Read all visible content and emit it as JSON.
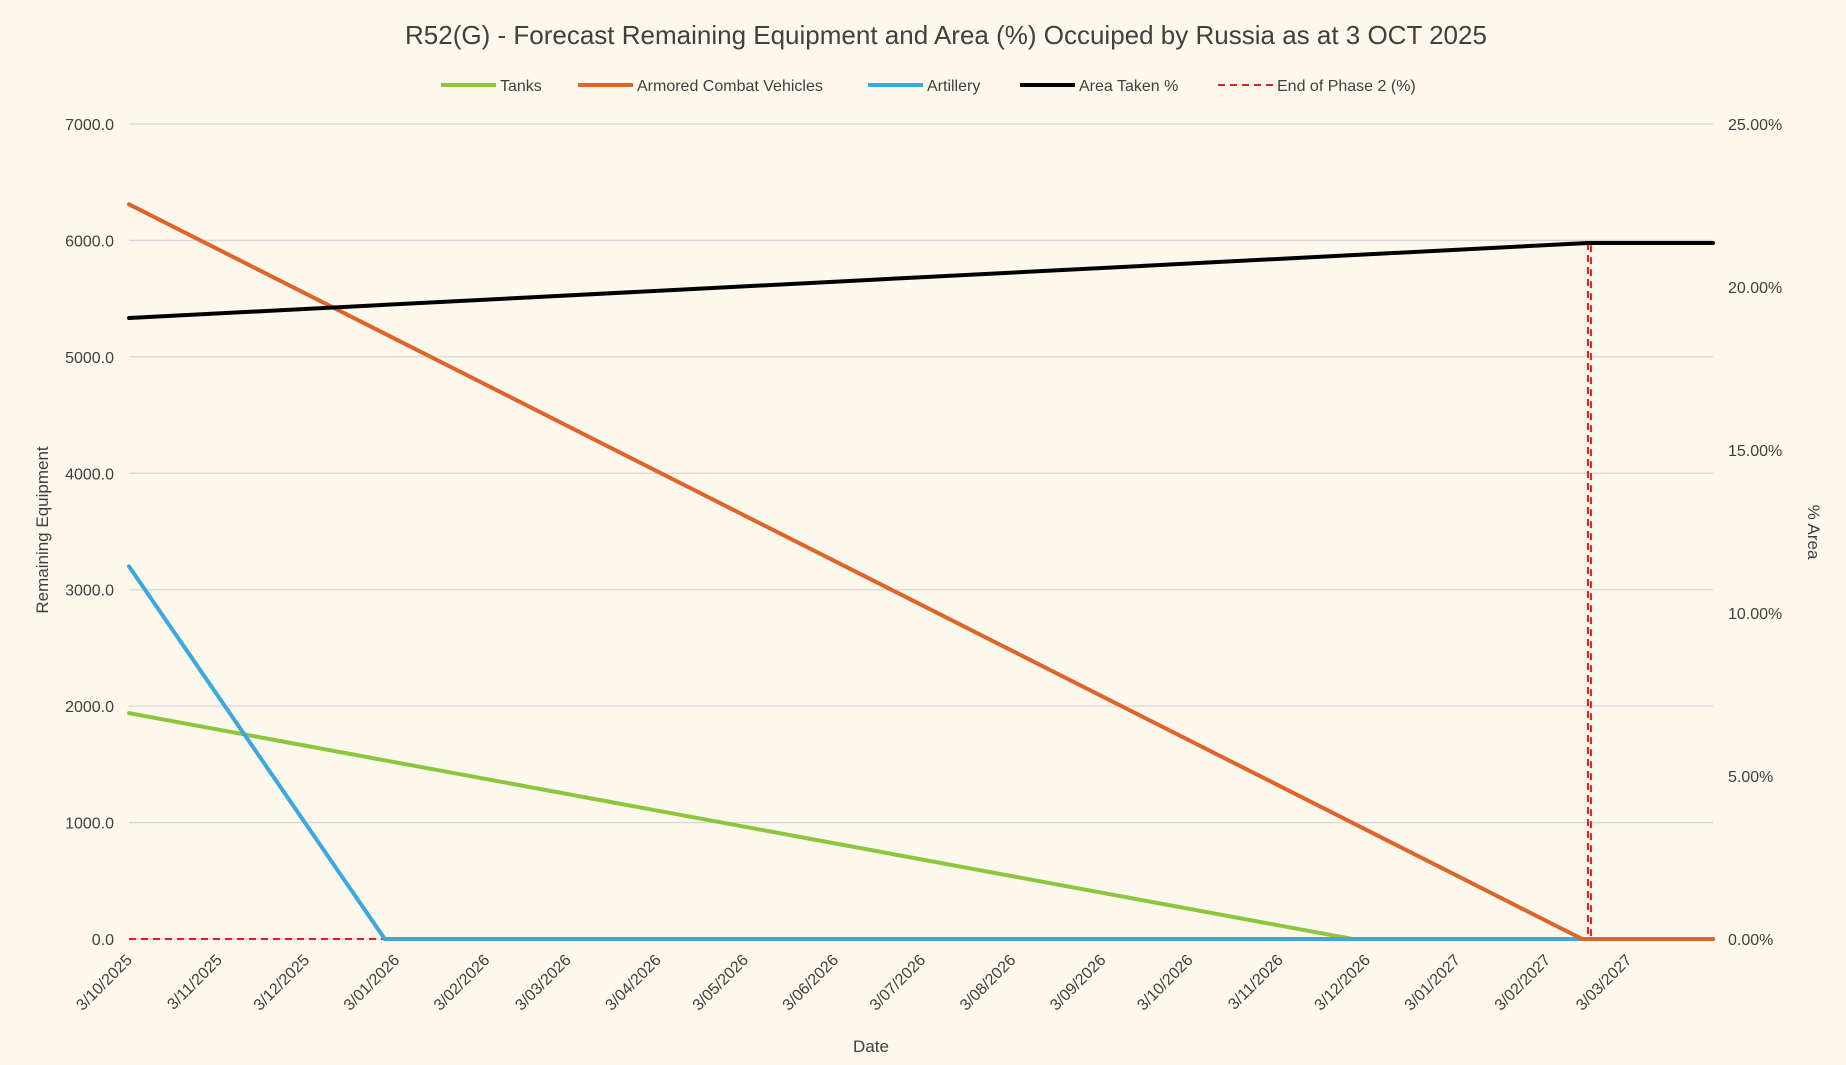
{
  "chart_data": {
    "type": "line",
    "title": "R52(G) - Forecast Remaining Equipment and Area (%) Occuiped by Russia as at 3 OCT 2025",
    "xlabel": "Date",
    "ylabel": "Remaining Equipment",
    "y2label": "% Area",
    "ylim": [
      0,
      7000
    ],
    "y2lim": [
      0,
      25
    ],
    "xlim": [
      "2025-10-03",
      "2027-04-01"
    ],
    "yticks": [
      "0.0",
      "1000.0",
      "2000.0",
      "3000.0",
      "4000.0",
      "5000.0",
      "6000.0",
      "7000.0"
    ],
    "y2ticks": [
      "0.00%",
      "5.00%",
      "10.00%",
      "15.00%",
      "20.00%",
      "25.00%"
    ],
    "xticks": [
      {
        "date": "2025-10-03",
        "label": "3/10/2025"
      },
      {
        "date": "2025-11-03",
        "label": "3/11/2025"
      },
      {
        "date": "2025-12-03",
        "label": "3/12/2025"
      },
      {
        "date": "2026-01-03",
        "label": "3/01/2026"
      },
      {
        "date": "2026-02-03",
        "label": "3/02/2026"
      },
      {
        "date": "2026-03-03",
        "label": "3/03/2026"
      },
      {
        "date": "2026-04-03",
        "label": "3/04/2026"
      },
      {
        "date": "2026-05-03",
        "label": "3/05/2026"
      },
      {
        "date": "2026-06-03",
        "label": "3/06/2026"
      },
      {
        "date": "2026-07-03",
        "label": "3/07/2026"
      },
      {
        "date": "2026-08-03",
        "label": "3/08/2026"
      },
      {
        "date": "2026-09-03",
        "label": "3/09/2026"
      },
      {
        "date": "2026-10-03",
        "label": "3/10/2026"
      },
      {
        "date": "2026-11-03",
        "label": "3/11/2026"
      },
      {
        "date": "2026-12-03",
        "label": "3/12/2026"
      },
      {
        "date": "2027-01-03",
        "label": "3/01/2027"
      },
      {
        "date": "2027-02-03",
        "label": "3/02/2027"
      },
      {
        "date": "2027-03-03",
        "label": "3/03/2027"
      }
    ],
    "grid": true,
    "legend_position": "top",
    "series": [
      {
        "name": "Tanks",
        "color": "#8cc63f",
        "axis": "left",
        "dash": false,
        "points": [
          [
            "2025-10-03",
            1940
          ],
          [
            "2026-11-28",
            0
          ],
          [
            "2027-04-01",
            0
          ]
        ]
      },
      {
        "name": "Armored Combat Vehicles",
        "color": "#e0642a",
        "axis": "left",
        "dash": false,
        "points": [
          [
            "2025-10-03",
            6310
          ],
          [
            "2027-02-15",
            0
          ],
          [
            "2027-04-01",
            0
          ]
        ]
      },
      {
        "name": "Artillery",
        "color": "#3ba8e0",
        "axis": "left",
        "dash": false,
        "points": [
          [
            "2025-10-03",
            3200
          ],
          [
            "2025-12-30",
            0
          ],
          [
            "2027-04-01",
            0
          ]
        ]
      },
      {
        "name": "Area Taken %",
        "color": "#000000",
        "axis": "right",
        "dash": false,
        "points": [
          [
            "2025-10-03",
            19.05
          ],
          [
            "2027-02-17",
            21.35
          ],
          [
            "2027-04-01",
            21.35
          ]
        ]
      },
      {
        "name": "End of Phase 2 (%)",
        "color": "#e01f1f",
        "axis": "right",
        "dash": true,
        "points": [
          [
            "2025-10-03",
            0
          ],
          [
            "2027-02-17",
            0
          ],
          [
            "2027-02-17",
            21.35
          ],
          [
            "2027-02-18",
            21.35
          ],
          [
            "2027-02-18",
            0
          ],
          [
            "2027-04-01",
            0
          ]
        ]
      }
    ]
  }
}
